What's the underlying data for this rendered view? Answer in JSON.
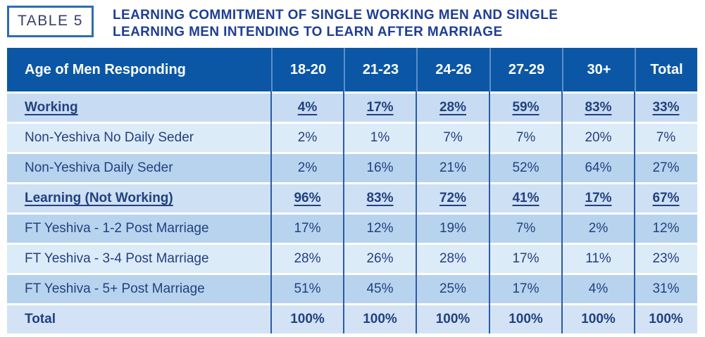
{
  "badge": {
    "label": "TABLE 5"
  },
  "title": {
    "line1": "LEARNING COMMITMENT OF SINGLE WORKING MEN AND SINGLE",
    "line2": "LEARNING MEN INTENDING TO LEARN AFTER MARRIAGE"
  },
  "colors": {
    "header_bg": "#0b57a6",
    "header_text": "#ffffff",
    "header_divider": "#5e8ecb",
    "body_divider": "#2d5ba5",
    "body_text": "#22417f",
    "title_text": "#1e3d94",
    "badge_border": "#2e6cb5",
    "badge_text": "#38406b"
  },
  "chart_data": {
    "type": "table",
    "title": "Learning Commitment of Single Working Men and Single Learning Men Intending to Learn After Marriage",
    "columns": [
      "Age of Men Responding",
      "18-20",
      "21-23",
      "24-26",
      "27-29",
      "30+",
      "Total"
    ],
    "rows": [
      {
        "label": "Working",
        "values": [
          "4%",
          "17%",
          "28%",
          "59%",
          "83%",
          "33%"
        ],
        "style": "bold-underline",
        "bg": "#c7dcf2"
      },
      {
        "label": "Non-Yeshiva No Daily Seder",
        "values": [
          "2%",
          "1%",
          "7%",
          "7%",
          "20%",
          "7%"
        ],
        "style": "normal",
        "bg": "#dcebf8"
      },
      {
        "label": "Non-Yeshiva Daily Seder",
        "values": [
          "2%",
          "16%",
          "21%",
          "52%",
          "64%",
          "27%"
        ],
        "style": "normal",
        "bg": "#b7d3ee"
      },
      {
        "label": "Learning (Not Working)",
        "values": [
          "96%",
          "83%",
          "72%",
          "41%",
          "17%",
          "67%"
        ],
        "style": "bold-underline",
        "bg": "#cee0f3"
      },
      {
        "label": "FT Yeshiva - 1-2 Post Marriage",
        "values": [
          "17%",
          "12%",
          "19%",
          "7%",
          "2%",
          "12%"
        ],
        "style": "normal",
        "bg": "#b7d3ee"
      },
      {
        "label": "FT Yeshiva - 3-4 Post Marriage",
        "values": [
          "28%",
          "26%",
          "28%",
          "17%",
          "11%",
          "23%"
        ],
        "style": "normal",
        "bg": "#dcebf8"
      },
      {
        "label": "FT Yeshiva - 5+ Post Marriage",
        "values": [
          "51%",
          "45%",
          "25%",
          "17%",
          "4%",
          "31%"
        ],
        "style": "normal",
        "bg": "#b7d3ee"
      },
      {
        "label": "Total",
        "values": [
          "100%",
          "100%",
          "100%",
          "100%",
          "100%",
          "100%"
        ],
        "style": "bold",
        "bg": "#d3e3f5"
      }
    ]
  }
}
